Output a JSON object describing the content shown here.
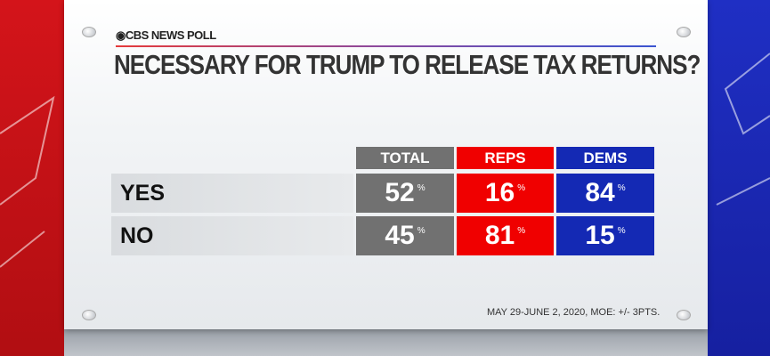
{
  "brand": "CBS NEWS POLL",
  "title": "NECESSARY FOR TRUMP TO RELEASE TAX RETURNS?",
  "colors": {
    "total": "#717171",
    "reps": "#f00000",
    "dems": "#1429b4"
  },
  "chart_data": {
    "type": "table",
    "columns": [
      "TOTAL",
      "REPS",
      "DEMS"
    ],
    "rows": [
      {
        "label": "YES",
        "values": [
          52,
          16,
          84
        ]
      },
      {
        "label": "NO",
        "values": [
          45,
          81,
          15
        ]
      }
    ],
    "unit": "%"
  },
  "footer": "MAY 29-JUNE 2, 2020, MOE: +/- 3PTS."
}
